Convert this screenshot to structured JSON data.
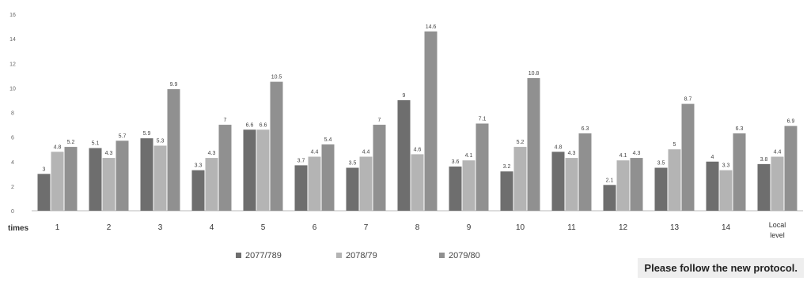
{
  "chart_data": {
    "type": "bar",
    "title": "",
    "xlabel": "times",
    "ylabel": "",
    "ylim": [
      0,
      16
    ],
    "yticks": [
      0,
      2,
      4,
      6,
      8,
      10,
      12,
      14,
      16
    ],
    "grid": false,
    "legend_position": "bottom",
    "categories": [
      "1",
      "2",
      "3",
      "4",
      "5",
      "6",
      "7",
      "8",
      "9",
      "10",
      "11",
      "12",
      "13",
      "14",
      "Local level"
    ],
    "series": [
      {
        "name": "2077/789",
        "color": "#6e6e6e",
        "values": [
          3,
          5.1,
          5.9,
          3.3,
          6.6,
          3.7,
          3.5,
          9,
          3.6,
          3.2,
          4.8,
          2.1,
          3.5,
          4,
          3.8
        ]
      },
      {
        "name": "2078/79",
        "color": "#b4b4b4",
        "values": [
          4.8,
          4.3,
          5.3,
          4.3,
          6.6,
          4.4,
          4.4,
          4.6,
          4.1,
          5.2,
          4.3,
          4.1,
          5,
          3.3,
          4.4
        ]
      },
      {
        "name": "2079/80",
        "color": "#909090",
        "values": [
          5.2,
          5.7,
          9.9,
          7,
          10.5,
          5.4,
          7,
          14.6,
          7.1,
          10.8,
          6.3,
          4.3,
          8.7,
          6.3,
          6.9
        ]
      }
    ]
  },
  "footer_note": "Please follow the new protocol."
}
